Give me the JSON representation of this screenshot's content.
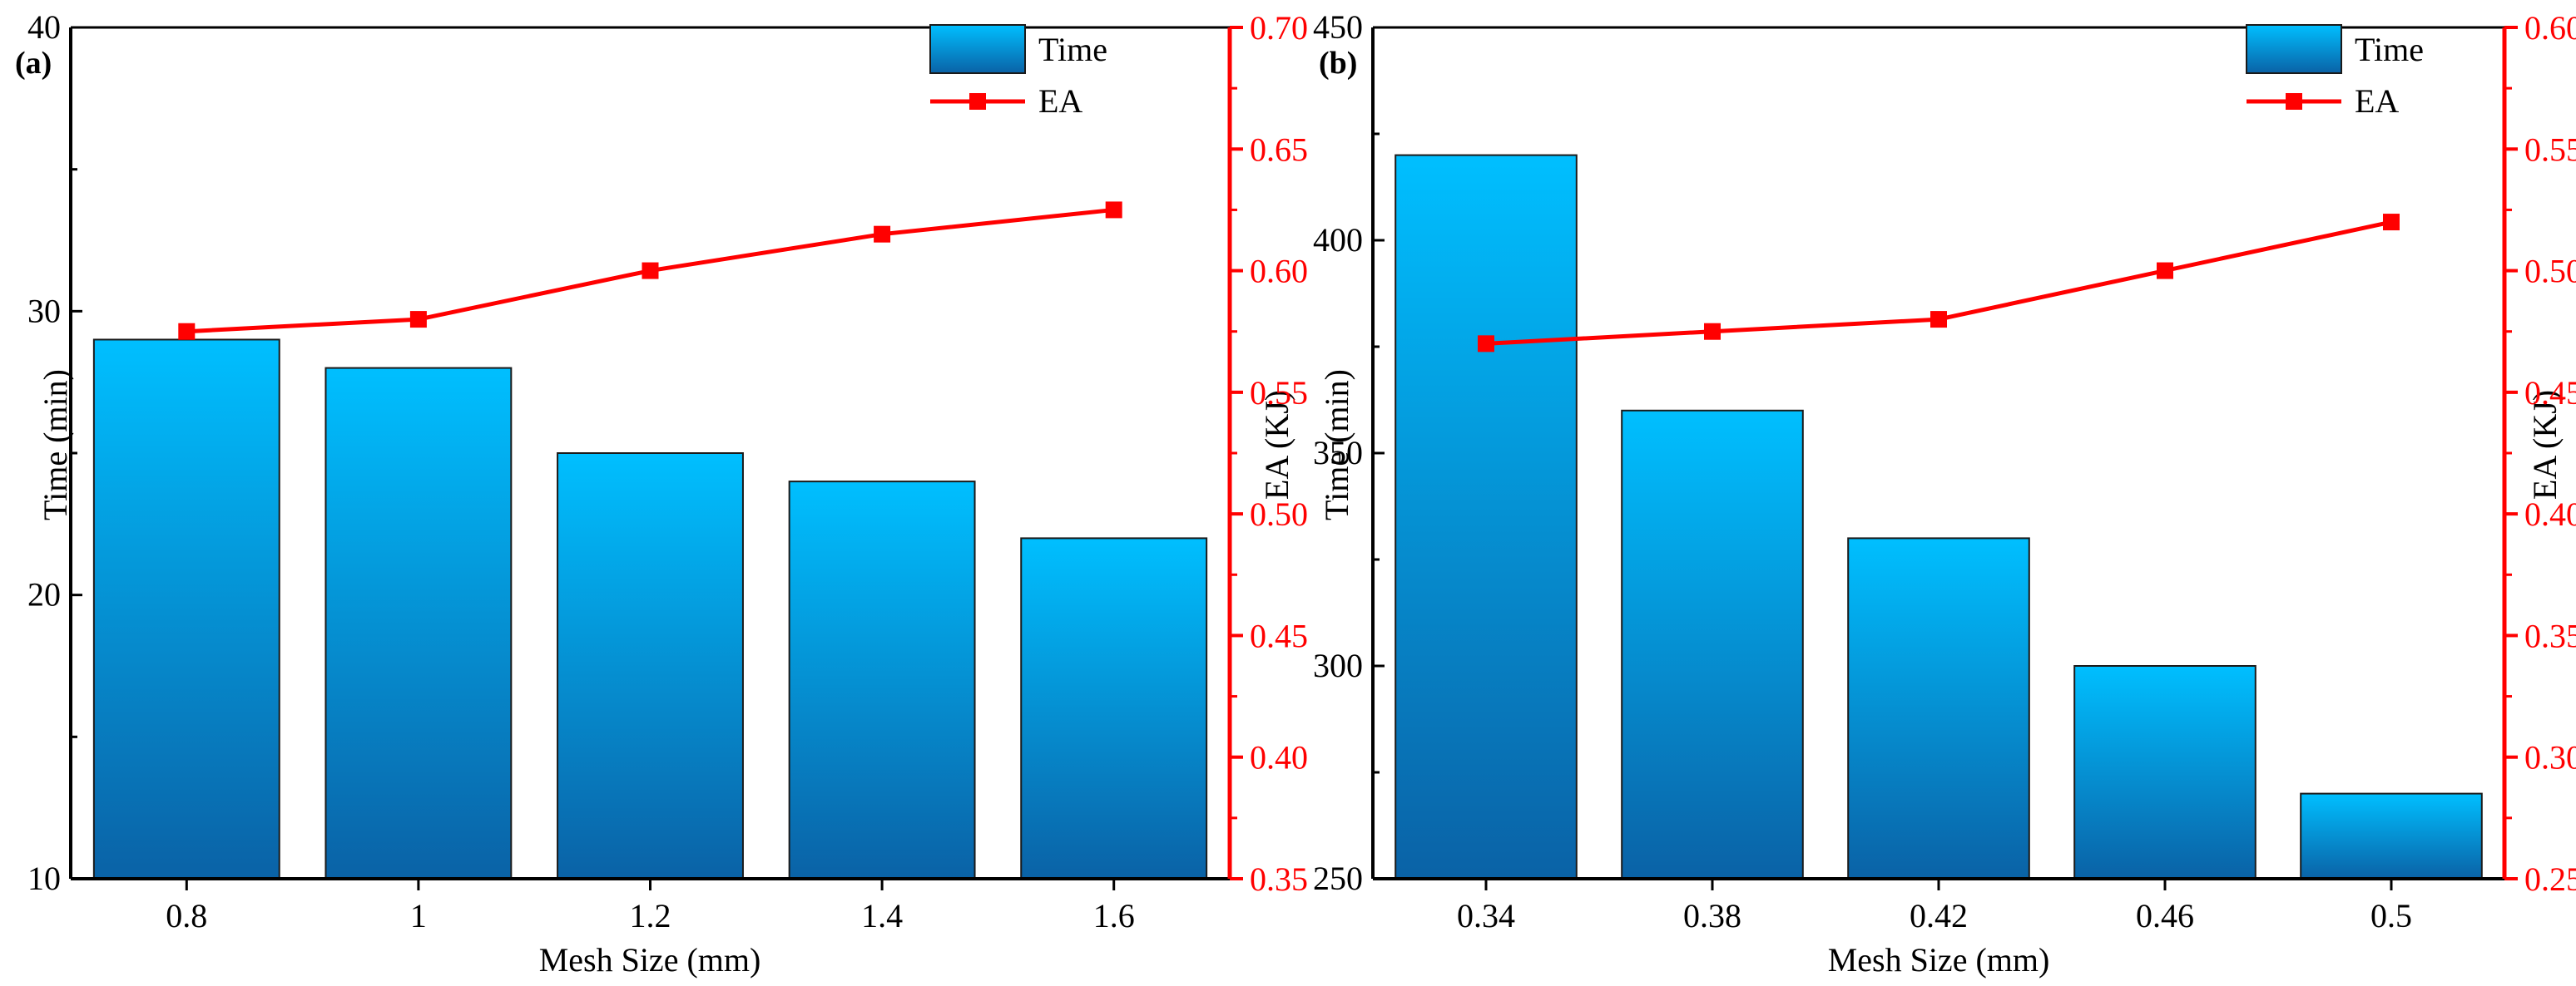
{
  "colors": {
    "bar_top": "#00BFFF",
    "bar_bottom": "#0A62A6",
    "bar_stroke": "#1a1a1a",
    "line": "#FF0000",
    "axis": "#000000",
    "right_axis": "#FF0000"
  },
  "chart_data": [
    {
      "type": "bar+line",
      "panel_label": "(a)",
      "categories": [
        "0.8",
        "1",
        "1.2",
        "1.4",
        "1.6"
      ],
      "series": [
        {
          "name": "Time",
          "axis": "left",
          "kind": "bar",
          "values": [
            29,
            28,
            25,
            24,
            22
          ]
        },
        {
          "name": "EA",
          "axis": "right",
          "kind": "line",
          "marker": "square",
          "values": [
            0.575,
            0.58,
            0.6,
            0.615,
            0.625
          ]
        }
      ],
      "xlabel": "Mesh Size (mm)",
      "ylabel": "Time (min)",
      "y2label": "EA (KJ)",
      "ylim": [
        10,
        40
      ],
      "yticks": [
        "10",
        "20",
        "30",
        "40"
      ],
      "y2lim": [
        0.35,
        0.7
      ],
      "y2ticks": [
        "0.35",
        "0.40",
        "0.45",
        "0.50",
        "0.55",
        "0.60",
        "0.65",
        "0.70"
      ],
      "legend": {
        "position": "top-right",
        "entries": [
          "Time",
          "EA"
        ]
      }
    },
    {
      "type": "bar+line",
      "panel_label": "(b)",
      "categories": [
        "0.34",
        "0.38",
        "0.42",
        "0.46",
        "0.5"
      ],
      "series": [
        {
          "name": "Time",
          "axis": "left",
          "kind": "bar",
          "values": [
            420,
            360,
            330,
            300,
            270
          ]
        },
        {
          "name": "EA",
          "axis": "right",
          "kind": "line",
          "marker": "square",
          "values": [
            0.47,
            0.475,
            0.48,
            0.5,
            0.52
          ]
        }
      ],
      "xlabel": "Mesh Size (mm)",
      "ylabel": "Time (min)",
      "y2label": "EA (KJ)",
      "ylim": [
        250,
        450
      ],
      "yticks": [
        "250",
        "300",
        "350",
        "400",
        "450"
      ],
      "y2lim": [
        0.25,
        0.6
      ],
      "y2ticks": [
        "0.25",
        "0.30",
        "0.35",
        "0.40",
        "0.45",
        "0.50",
        "0.55",
        "0.60"
      ],
      "legend": {
        "position": "top-right",
        "entries": [
          "Time",
          "EA"
        ]
      }
    }
  ]
}
